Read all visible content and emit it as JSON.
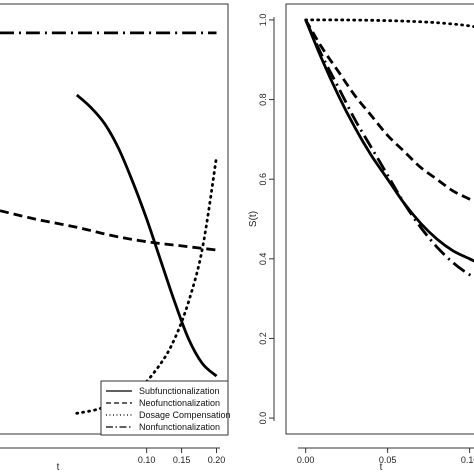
{
  "chart_data": [
    {
      "type": "line",
      "title": "",
      "xlabel": "t",
      "ylabel": "",
      "xlim": [
        -0.11,
        0.205
      ],
      "ylim": [
        0.05,
        1.09
      ],
      "x_ticks": [
        0.1,
        0.15,
        0.2
      ],
      "x_tick_labels": [
        "0.10",
        "0.15",
        "0.20"
      ],
      "legend": {
        "placement": "bottom-right",
        "entries": [
          "Subfunctionalization",
          "Neofunctionalization",
          "Dosage Compensation",
          "Nonfunctionalization"
        ]
      },
      "series": [
        {
          "name": "Subfunctionalization",
          "x": [
            0.0,
            0.02,
            0.04,
            0.06,
            0.08,
            0.1,
            0.12,
            0.14,
            0.16,
            0.18,
            0.2
          ],
          "y": [
            0.87,
            0.84,
            0.8,
            0.74,
            0.66,
            0.57,
            0.47,
            0.37,
            0.28,
            0.22,
            0.19
          ]
        },
        {
          "name": "Neofunctionalization",
          "x": [
            -0.11,
            -0.06,
            0.0,
            0.05,
            0.1,
            0.15,
            0.2
          ],
          "y": [
            0.59,
            0.57,
            0.55,
            0.53,
            0.515,
            0.505,
            0.495
          ]
        },
        {
          "name": "Dosage Compensation",
          "x": [
            0.0,
            0.03,
            0.06,
            0.09,
            0.12,
            0.14,
            0.16,
            0.18,
            0.2
          ],
          "y": [
            0.1,
            0.11,
            0.13,
            0.16,
            0.22,
            0.28,
            0.37,
            0.5,
            0.72
          ]
        },
        {
          "name": "Nonfunctionalization",
          "x": [
            -0.11,
            0.2
          ],
          "y": [
            1.02,
            1.02
          ]
        }
      ]
    },
    {
      "type": "line",
      "title": "",
      "xlabel": "t",
      "ylabel": "S(t)",
      "xlim": [
        -0.012,
        0.11
      ],
      "ylim": [
        -0.04,
        1.04
      ],
      "x_ticks": [
        0.0,
        0.05,
        0.1
      ],
      "x_tick_labels": [
        "0.00",
        "0.05",
        "0.10"
      ],
      "y_ticks": [
        0.0,
        0.2,
        0.4,
        0.6,
        0.8,
        1.0
      ],
      "y_tick_labels": [
        "0.0",
        "0.2",
        "0.4",
        "0.6",
        "0.8",
        "1.0"
      ],
      "series": [
        {
          "name": "Subfunctionalization",
          "x": [
            0.0,
            0.01,
            0.02,
            0.03,
            0.04,
            0.05,
            0.06,
            0.07,
            0.08,
            0.09,
            0.1,
            0.11
          ],
          "y": [
            1.0,
            0.9,
            0.81,
            0.73,
            0.66,
            0.6,
            0.54,
            0.49,
            0.45,
            0.42,
            0.4,
            0.38
          ]
        },
        {
          "name": "Neofunctionalization",
          "x": [
            0.0,
            0.01,
            0.02,
            0.03,
            0.04,
            0.05,
            0.06,
            0.07,
            0.08,
            0.09,
            0.1,
            0.11
          ],
          "y": [
            1.0,
            0.93,
            0.87,
            0.81,
            0.76,
            0.71,
            0.67,
            0.63,
            0.6,
            0.57,
            0.55,
            0.53
          ]
        },
        {
          "name": "Dosage Compensation",
          "x": [
            0.0,
            0.02,
            0.04,
            0.06,
            0.08,
            0.1,
            0.11
          ],
          "y": [
            1.0,
            1.0,
            0.999,
            0.997,
            0.993,
            0.985,
            0.975
          ]
        },
        {
          "name": "Nonfunctionalization",
          "x": [
            0.0,
            0.01,
            0.02,
            0.03,
            0.04,
            0.05,
            0.06,
            0.07,
            0.08,
            0.09,
            0.1,
            0.11
          ],
          "y": [
            1.0,
            0.91,
            0.83,
            0.75,
            0.68,
            0.61,
            0.54,
            0.48,
            0.43,
            0.39,
            0.36,
            0.34
          ]
        }
      ]
    }
  ]
}
